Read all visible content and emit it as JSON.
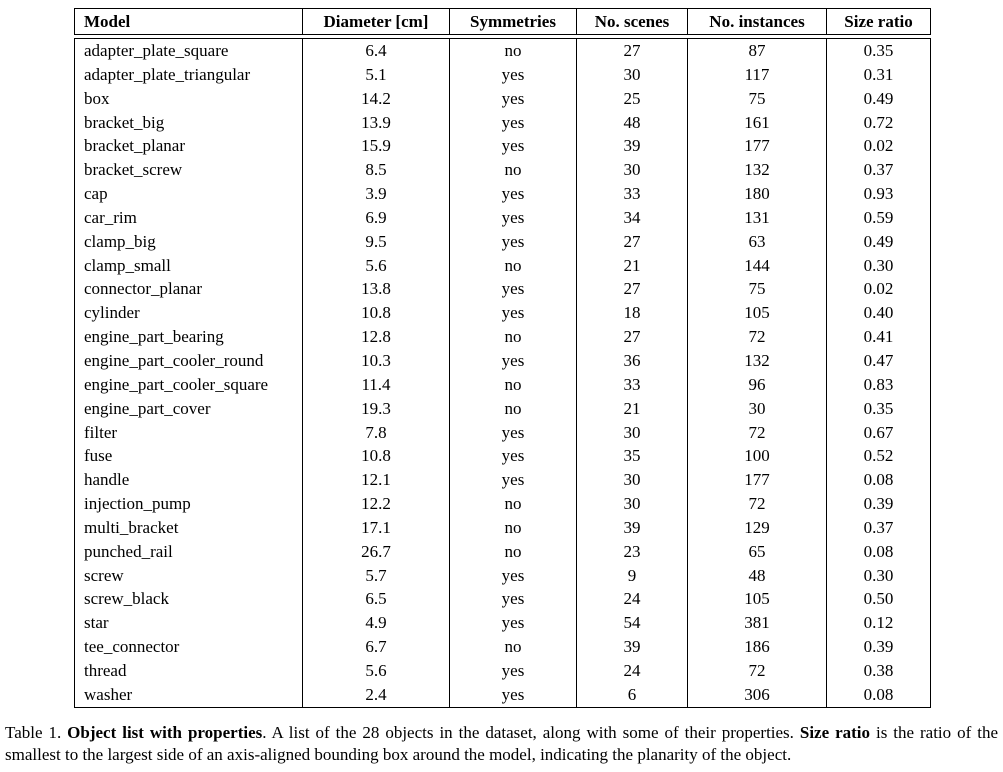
{
  "table": {
    "columns": [
      "Model",
      "Diameter [cm]",
      "Symmetries",
      "No. scenes",
      "No. instances",
      "Size ratio"
    ],
    "rows": [
      [
        "adapter_plate_square",
        "6.4",
        "no",
        "27",
        "87",
        "0.35"
      ],
      [
        "adapter_plate_triangular",
        "5.1",
        "yes",
        "30",
        "117",
        "0.31"
      ],
      [
        "box",
        "14.2",
        "yes",
        "25",
        "75",
        "0.49"
      ],
      [
        "bracket_big",
        "13.9",
        "yes",
        "48",
        "161",
        "0.72"
      ],
      [
        "bracket_planar",
        "15.9",
        "yes",
        "39",
        "177",
        "0.02"
      ],
      [
        "bracket_screw",
        "8.5",
        "no",
        "30",
        "132",
        "0.37"
      ],
      [
        "cap",
        "3.9",
        "yes",
        "33",
        "180",
        "0.93"
      ],
      [
        "car_rim",
        "6.9",
        "yes",
        "34",
        "131",
        "0.59"
      ],
      [
        "clamp_big",
        "9.5",
        "yes",
        "27",
        "63",
        "0.49"
      ],
      [
        "clamp_small",
        "5.6",
        "no",
        "21",
        "144",
        "0.30"
      ],
      [
        "connector_planar",
        "13.8",
        "yes",
        "27",
        "75",
        "0.02"
      ],
      [
        "cylinder",
        "10.8",
        "yes",
        "18",
        "105",
        "0.40"
      ],
      [
        "engine_part_bearing",
        "12.8",
        "no",
        "27",
        "72",
        "0.41"
      ],
      [
        "engine_part_cooler_round",
        "10.3",
        "yes",
        "36",
        "132",
        "0.47"
      ],
      [
        "engine_part_cooler_square",
        "11.4",
        "no",
        "33",
        "96",
        "0.83"
      ],
      [
        "engine_part_cover",
        "19.3",
        "no",
        "21",
        "30",
        "0.35"
      ],
      [
        "filter",
        "7.8",
        "yes",
        "30",
        "72",
        "0.67"
      ],
      [
        "fuse",
        "10.8",
        "yes",
        "35",
        "100",
        "0.52"
      ],
      [
        "handle",
        "12.1",
        "yes",
        "30",
        "177",
        "0.08"
      ],
      [
        "injection_pump",
        "12.2",
        "no",
        "30",
        "72",
        "0.39"
      ],
      [
        "multi_bracket",
        "17.1",
        "no",
        "39",
        "129",
        "0.37"
      ],
      [
        "punched_rail",
        "26.7",
        "no",
        "23",
        "65",
        "0.08"
      ],
      [
        "screw",
        "5.7",
        "yes",
        "9",
        "48",
        "0.30"
      ],
      [
        "screw_black",
        "6.5",
        "yes",
        "24",
        "105",
        "0.50"
      ],
      [
        "star",
        "4.9",
        "yes",
        "54",
        "381",
        "0.12"
      ],
      [
        "tee_connector",
        "6.7",
        "no",
        "39",
        "186",
        "0.39"
      ],
      [
        "thread",
        "5.6",
        "yes",
        "24",
        "72",
        "0.38"
      ],
      [
        "washer",
        "2.4",
        "yes",
        "6",
        "306",
        "0.08"
      ]
    ]
  },
  "caption": {
    "segments": [
      {
        "text": "Table 1. ",
        "bold": false
      },
      {
        "text": "Object list with properties",
        "bold": true
      },
      {
        "text": ". A list of the 28 objects in the dataset, along with some of their properties. ",
        "bold": false
      },
      {
        "text": "Size ratio",
        "bold": true
      },
      {
        "text": " is the ratio of the smallest to the largest side of an axis-aligned bounding box around the model, indicating the planarity of the object.",
        "bold": false
      }
    ]
  },
  "colors": {
    "text": "#000000",
    "border": "#000000",
    "background": "#ffffff"
  }
}
